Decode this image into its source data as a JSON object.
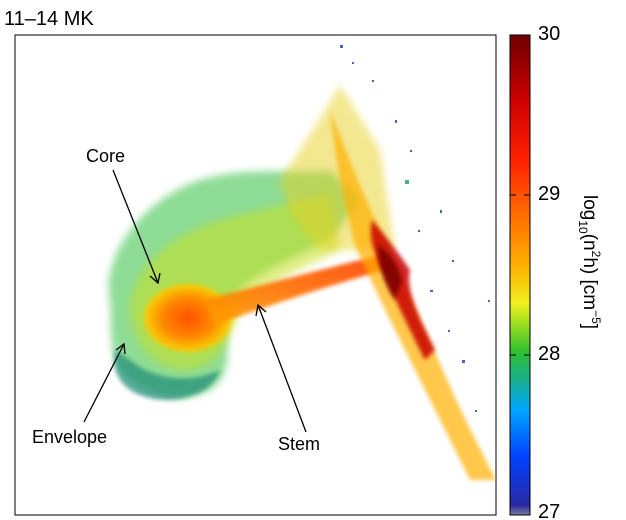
{
  "title": "11–14 MK",
  "annotations": {
    "core": "Core",
    "stem": "Stem",
    "envelope": "Envelope"
  },
  "colorbar": {
    "label_prefix": "log",
    "label_base": "10",
    "label_open": "(n",
    "label_sq": "2",
    "label_mid": "h) [cm",
    "label_exp": "−5",
    "label_close": "]",
    "ticks": [
      "27",
      "28",
      "29",
      "30"
    ],
    "min": 27,
    "max": 30
  },
  "colors": {
    "colormap": [
      "#2a2aa0",
      "#0050ff",
      "#00a0ff",
      "#18b080",
      "#30c030",
      "#80dd20",
      "#d8e820",
      "#ffc000",
      "#ff7000",
      "#ff2000",
      "#c00000",
      "#800000"
    ]
  }
}
